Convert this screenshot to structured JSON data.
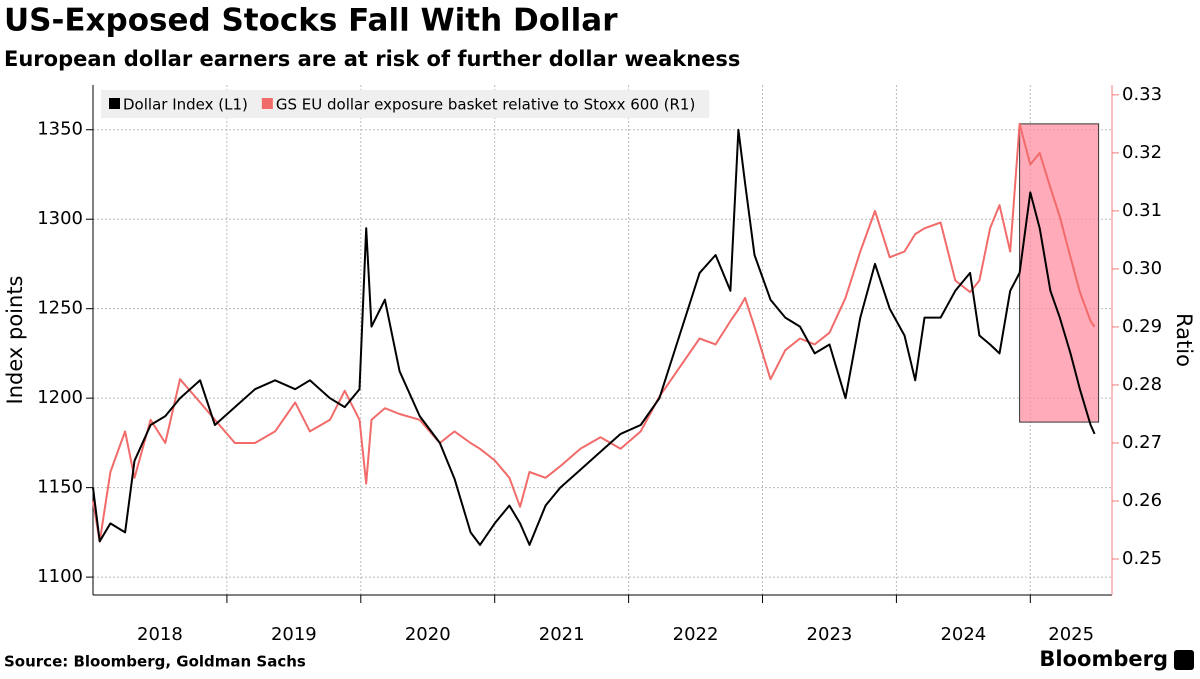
{
  "chart_data": {
    "type": "line",
    "title": "US-Exposed Stocks Fall With Dollar",
    "subtitle": "European dollar earners are at risk of further dollar weakness",
    "source": "Source: Bloomberg, Goldman Sachs",
    "brand": "Bloomberg",
    "ylabel": "Index points",
    "y2label": "Ratio",
    "x": [
      2018.0,
      2018.05,
      2018.13,
      2018.24,
      2018.31,
      2018.43,
      2018.54,
      2018.65,
      2018.8,
      2018.91,
      2019.06,
      2019.21,
      2019.36,
      2019.51,
      2019.62,
      2019.77,
      2019.88,
      2019.99,
      2020.04,
      2020.08,
      2020.18,
      2020.29,
      2020.44,
      2020.59,
      2020.7,
      2020.82,
      2020.89,
      2021.0,
      2021.11,
      2021.19,
      2021.26,
      2021.38,
      2021.49,
      2021.64,
      2021.79,
      2021.94,
      2022.09,
      2022.23,
      2022.38,
      2022.53,
      2022.65,
      2022.76,
      2022.82,
      2022.87,
      2022.94,
      2023.06,
      2023.17,
      2023.28,
      2023.39,
      2023.5,
      2023.62,
      2023.73,
      2023.84,
      2023.95,
      2024.06,
      2024.14,
      2024.21,
      2024.33,
      2024.44,
      2024.55,
      2024.62,
      2024.7,
      2024.77,
      2024.85,
      2024.92,
      2025.0,
      2025.07,
      2025.15,
      2025.22,
      2025.3,
      2025.37,
      2025.45,
      2025.48
    ],
    "series": [
      {
        "name": "Dollar Index (L1)",
        "color": "#000000",
        "axis": "y",
        "values": [
          1150,
          1120,
          1130,
          1125,
          1165,
          1185,
          1190,
          1200,
          1210,
          1185,
          1195,
          1205,
          1210,
          1205,
          1210,
          1200,
          1195,
          1205,
          1295,
          1240,
          1255,
          1215,
          1190,
          1175,
          1155,
          1125,
          1118,
          1130,
          1140,
          1130,
          1118,
          1140,
          1150,
          1160,
          1170,
          1180,
          1185,
          1200,
          1235,
          1270,
          1280,
          1260,
          1350,
          1320,
          1280,
          1255,
          1245,
          1240,
          1225,
          1230,
          1200,
          1245,
          1275,
          1250,
          1235,
          1210,
          1245,
          1245,
          1260,
          1270,
          1235,
          1230,
          1225,
          1260,
          1270,
          1315,
          1295,
          1260,
          1245,
          1225,
          1205,
          1185,
          1180
        ]
      },
      {
        "name": "GS EU dollar exposure basket relative to Stoxx 600 (R1)",
        "color": "#f26b6b",
        "axis": "y2",
        "values": [
          0.26,
          0.253,
          0.265,
          0.272,
          0.264,
          0.274,
          0.27,
          0.281,
          0.277,
          0.274,
          0.27,
          0.27,
          0.272,
          0.277,
          0.272,
          0.274,
          0.279,
          0.274,
          0.263,
          0.274,
          0.276,
          0.275,
          0.274,
          0.27,
          0.272,
          0.27,
          0.269,
          0.267,
          0.264,
          0.259,
          0.265,
          0.264,
          0.266,
          0.269,
          0.271,
          0.269,
          0.272,
          0.278,
          0.283,
          0.288,
          0.287,
          0.291,
          0.293,
          0.295,
          0.29,
          0.281,
          0.286,
          0.288,
          0.287,
          0.289,
          0.295,
          0.303,
          0.31,
          0.302,
          0.303,
          0.306,
          0.307,
          0.308,
          0.298,
          0.296,
          0.298,
          0.307,
          0.311,
          0.303,
          0.325,
          0.318,
          0.32,
          0.314,
          0.309,
          0.302,
          0.296,
          0.291,
          0.29
        ]
      }
    ],
    "highlight": {
      "x": [
        2024.92,
        2025.51
      ],
      "y2": [
        0.2736,
        0.325
      ],
      "color": "#ff8fa3"
    },
    "xlim": [
      2018,
      2025.61
    ],
    "xticks": [
      {
        "value": 2018,
        "label": "2018"
      },
      {
        "value": 2019,
        "label": "2019"
      },
      {
        "value": 2020,
        "label": "2020"
      },
      {
        "value": 2021,
        "label": "2021"
      },
      {
        "value": 2022,
        "label": "2022"
      },
      {
        "value": 2023,
        "label": "2023"
      },
      {
        "value": 2024,
        "label": "2024"
      },
      {
        "value": 2025,
        "label": "2025"
      }
    ],
    "ylim": [
      1090,
      1375
    ],
    "yticks": [
      1100,
      1150,
      1200,
      1250,
      1300,
      1350
    ],
    "y2lim": [
      0.2438,
      0.3317
    ],
    "y2ticks": [
      0.25,
      0.26,
      0.27,
      0.28,
      0.29,
      {
        "value": 0.3,
        "label": "0.30"
      },
      0.31,
      0.32,
      0.33
    ],
    "y2color": "#f07b7b",
    "grid": true,
    "legend": "top-left"
  }
}
